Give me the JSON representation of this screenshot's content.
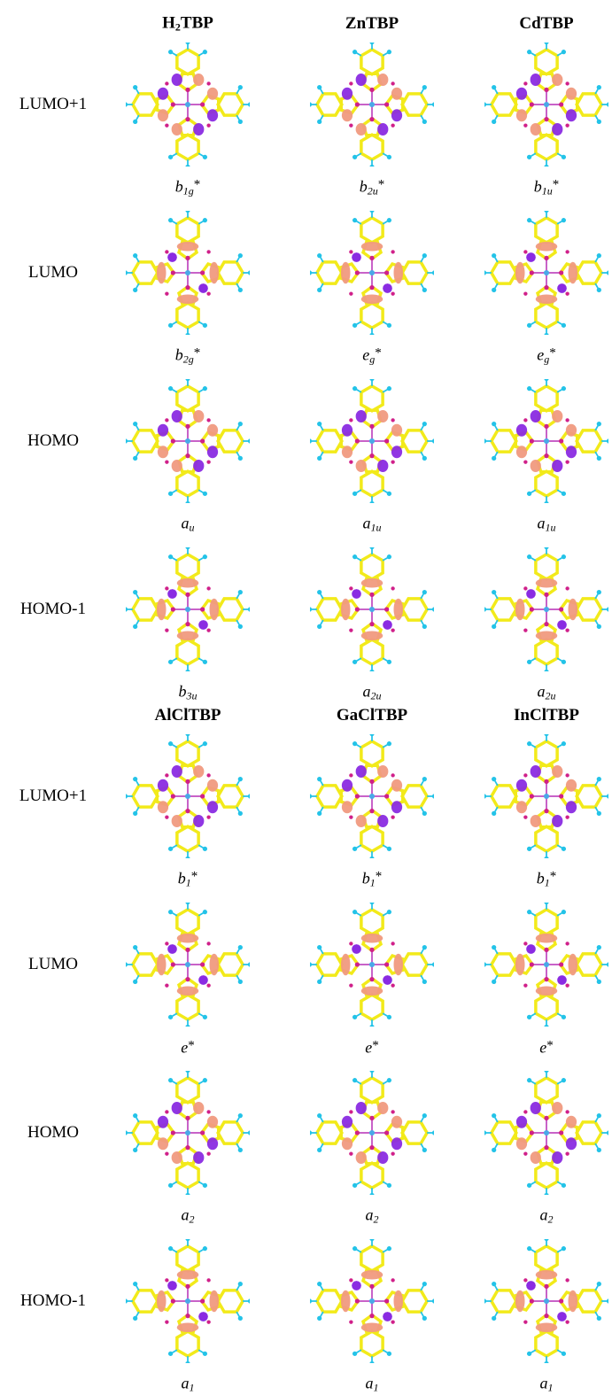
{
  "panels": [
    {
      "headers": [
        {
          "main": "H",
          "sub": "2",
          "rest": "TBP"
        },
        {
          "main": "ZnTBP"
        },
        {
          "main": "CdTBP"
        }
      ],
      "rows": [
        {
          "label": "LUMO+1",
          "symmetry": [
            {
              "main": "b",
              "sub": "1g",
              "sup": "*"
            },
            {
              "main": "b",
              "sub": "2u",
              "sup": "*"
            },
            {
              "main": "b",
              "sub": "1u",
              "sup": "*"
            }
          ]
        },
        {
          "label": "LUMO",
          "symmetry": [
            {
              "main": "b",
              "sub": "2g",
              "sup": "*"
            },
            {
              "main": "e",
              "sub": "g",
              "sup": "*"
            },
            {
              "main": "e",
              "sub": "g",
              "sup": "*"
            }
          ]
        },
        {
          "label": "HOMO",
          "symmetry": [
            {
              "main": "a",
              "sub": "u"
            },
            {
              "main": "a",
              "sub": "1u"
            },
            {
              "main": "a",
              "sub": "1u"
            }
          ]
        },
        {
          "label": "HOMO-1",
          "symmetry": [
            {
              "main": "b",
              "sub": "3u"
            },
            {
              "main": "a",
              "sub": "2u"
            },
            {
              "main": "a",
              "sub": "2u"
            }
          ]
        }
      ]
    },
    {
      "headers": [
        {
          "main": "AlClTBP"
        },
        {
          "main": "GaClTBP"
        },
        {
          "main": "InClTBP"
        }
      ],
      "rows": [
        {
          "label": "LUMO+1",
          "symmetry": [
            {
              "main": "b",
              "sub": "1",
              "sup": "*"
            },
            {
              "main": "b",
              "sub": "1",
              "sup": "*"
            },
            {
              "main": "b",
              "sub": "1",
              "sup": "*"
            }
          ]
        },
        {
          "label": "LUMO",
          "symmetry": [
            {
              "main": "e",
              "sup": "*"
            },
            {
              "main": "e",
              "sup": "*"
            },
            {
              "main": "e",
              "sup": "*"
            }
          ]
        },
        {
          "label": "HOMO",
          "symmetry": [
            {
              "main": "a",
              "sub": "2"
            },
            {
              "main": "a",
              "sub": "2"
            },
            {
              "main": "a",
              "sub": "2"
            }
          ]
        },
        {
          "label": "HOMO-1",
          "symmetry": [
            {
              "main": "a",
              "sub": "1"
            },
            {
              "main": "a",
              "sub": "1"
            },
            {
              "main": "a",
              "sub": "1"
            }
          ]
        }
      ]
    }
  ]
}
